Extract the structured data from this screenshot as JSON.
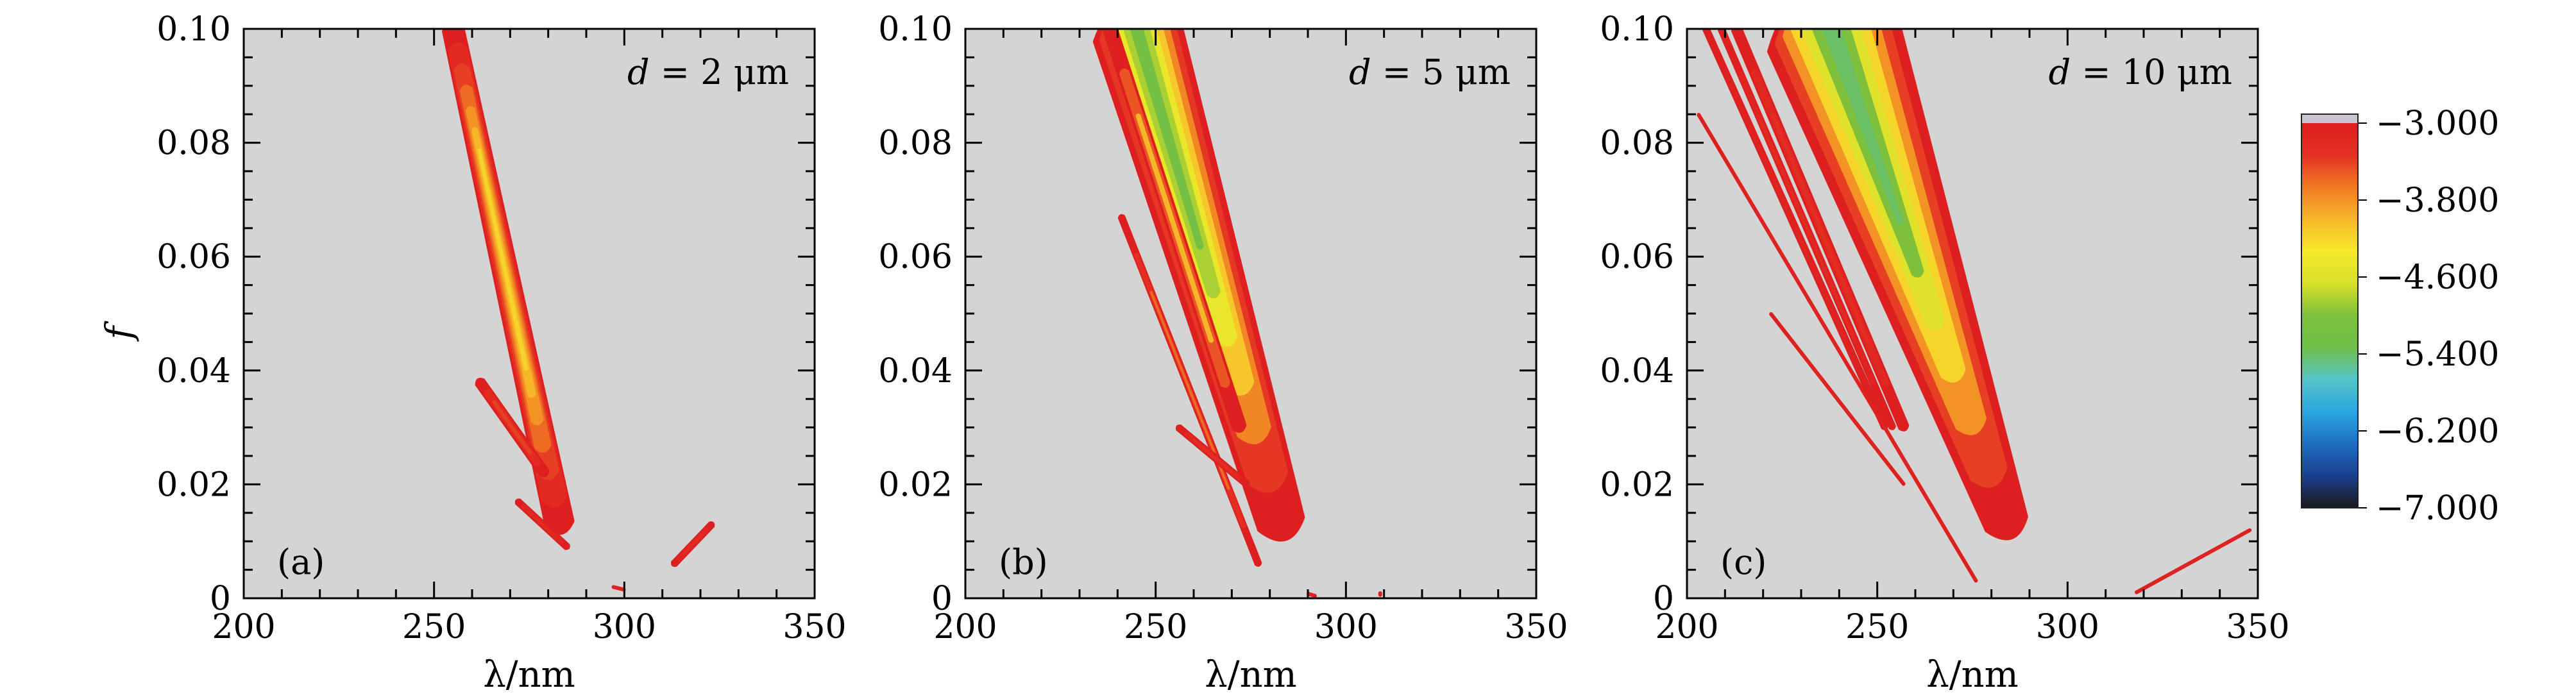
{
  "chart_data": [
    {
      "type": "heatmap",
      "panel_label": "(a)",
      "annotation": {
        "var": "d",
        "eq": " = 2 μm"
      },
      "xlabel": "λ/nm",
      "ylabel": "f",
      "xlim": [
        200,
        350
      ],
      "ylim": [
        0,
        0.1
      ],
      "xticks": [
        "200",
        "250",
        "300",
        "350"
      ],
      "yticks": [
        "0",
        "0.02",
        "0.04",
        "0.06",
        "0.08",
        "0.10"
      ],
      "background_color": "#d4d4d4",
      "regions": [
        {
          "type": "main_band",
          "x_top": 255,
          "x_bottom": 283,
          "y_top": 0.1,
          "y_bottom": 0.013,
          "width_top": 6,
          "width_bottom": 8,
          "min_value": -4.2,
          "min_at_y": 0.06
        },
        {
          "type": "side_lobe",
          "x_top": 262,
          "x_bottom": 279,
          "y_top": 0.038,
          "y_bottom": 0.022,
          "width": 3,
          "min_value": -3.4
        },
        {
          "type": "side_lobe",
          "x_top": 272,
          "x_bottom": 285,
          "y_top": 0.017,
          "y_bottom": 0.009,
          "width": 2,
          "min_value": -3.2
        },
        {
          "type": "fringe",
          "x_top": 323,
          "x_bottom": 313,
          "y_top": 0.013,
          "y_bottom": 0.006,
          "width": 2,
          "min_value": -3.2
        },
        {
          "type": "fringe",
          "x_top": 297,
          "x_bottom": 300,
          "y_top": 0.002,
          "y_bottom": 0.0015,
          "width": 1,
          "min_value": -3.1
        }
      ]
    },
    {
      "type": "heatmap",
      "panel_label": "(b)",
      "annotation": {
        "var": "d",
        "eq": " = 5 μm"
      },
      "xlabel": "λ/nm",
      "ylabel": "",
      "xlim": [
        200,
        350
      ],
      "ylim": [
        0,
        0.1
      ],
      "xticks": [
        "200",
        "250",
        "300",
        "350"
      ],
      "yticks": [
        "0",
        "0.02",
        "0.04",
        "0.06",
        "0.08",
        "0.10"
      ],
      "background_color": "#d4d4d4",
      "regions": [
        {
          "type": "main_band",
          "x_top": 245,
          "x_bottom": 283,
          "y_top": 0.1,
          "y_bottom": 0.013,
          "width_top": 24,
          "width_bottom": 13,
          "min_value": -5.2,
          "min_at_y": 0.085
        },
        {
          "type": "side_lobe",
          "x_top": 238,
          "x_bottom": 272,
          "y_top": 0.1,
          "y_bottom": 0.03,
          "width": 4,
          "min_value": -4.0
        },
        {
          "type": "side_lobe",
          "x_top": 241,
          "x_bottom": 277,
          "y_top": 0.067,
          "y_bottom": 0.006,
          "width": 2,
          "min_value": -3.6
        },
        {
          "type": "side_lobe",
          "x_top": 256,
          "x_bottom": 274,
          "y_top": 0.03,
          "y_bottom": 0.02,
          "width": 2,
          "min_value": -3.3
        },
        {
          "type": "fringe",
          "x_top": 309,
          "x_bottom": 309,
          "y_top": 0.001,
          "y_bottom": 0.0005,
          "width": 1,
          "min_value": -3.1
        },
        {
          "type": "fringe",
          "x_top": 290,
          "x_bottom": 292,
          "y_top": 0.0008,
          "y_bottom": 0.0004,
          "width": 1,
          "min_value": -3.1
        }
      ]
    },
    {
      "type": "heatmap",
      "panel_label": "(c)",
      "annotation": {
        "var": "d",
        "eq": " = 10 μm"
      },
      "xlabel": "λ/nm",
      "ylabel": "",
      "xlim": [
        200,
        350
      ],
      "ylim": [
        0,
        0.1
      ],
      "xticks": [
        "200",
        "250",
        "300",
        "350"
      ],
      "yticks": [
        "0",
        "0.02",
        "0.04",
        "0.06",
        "0.08",
        "0.10"
      ],
      "background_color": "#d4d4d4",
      "regions": [
        {
          "type": "main_band",
          "x_top": 238,
          "x_bottom": 284,
          "y_top": 0.1,
          "y_bottom": 0.013,
          "width_top": 36,
          "width_bottom": 12,
          "min_value": -5.4,
          "min_at_y": 0.09
        },
        {
          "type": "side_lobe",
          "x_top": 213,
          "x_bottom": 257,
          "y_top": 0.1,
          "y_bottom": 0.03,
          "width": 3,
          "min_value": -3.3
        },
        {
          "type": "side_lobe",
          "x_top": 209,
          "x_bottom": 254,
          "y_top": 0.1,
          "y_bottom": 0.03,
          "width": 2,
          "min_value": -3.2
        },
        {
          "type": "side_lobe",
          "x_top": 205,
          "x_bottom": 252,
          "y_top": 0.1,
          "y_bottom": 0.03,
          "width": 2,
          "min_value": -3.1
        },
        {
          "type": "side_lobe",
          "x_top": 203,
          "x_bottom": 276,
          "y_top": 0.085,
          "y_bottom": 0.003,
          "width": 1,
          "min_value": -3.1
        },
        {
          "type": "side_lobe",
          "x_top": 222,
          "x_bottom": 257,
          "y_top": 0.05,
          "y_bottom": 0.02,
          "width": 1,
          "min_value": -3.1
        },
        {
          "type": "fringe",
          "x_top": 348,
          "x_bottom": 318,
          "y_top": 0.012,
          "y_bottom": 0.001,
          "width": 1,
          "min_value": -3.1
        }
      ]
    }
  ],
  "colorbar": {
    "ticks": [
      "−3.000",
      "−3.800",
      "−4.600",
      "−5.400",
      "−6.200",
      "−7.000"
    ],
    "tick_values": [
      -3.0,
      -3.8,
      -4.6,
      -5.4,
      -6.2,
      -7.0
    ],
    "range": [
      -7.0,
      -3.0
    ],
    "colors": [
      "#1a1a1a",
      "#1b3f8f",
      "#1e6fc0",
      "#2aa6e0",
      "#56c4c8",
      "#6fbf4a",
      "#7ec03c",
      "#d8e02a",
      "#f6ea2a",
      "#f7b62a",
      "#f07a22",
      "#e53024",
      "#dd1f1f"
    ],
    "cap_color": "#c9c4cf"
  }
}
